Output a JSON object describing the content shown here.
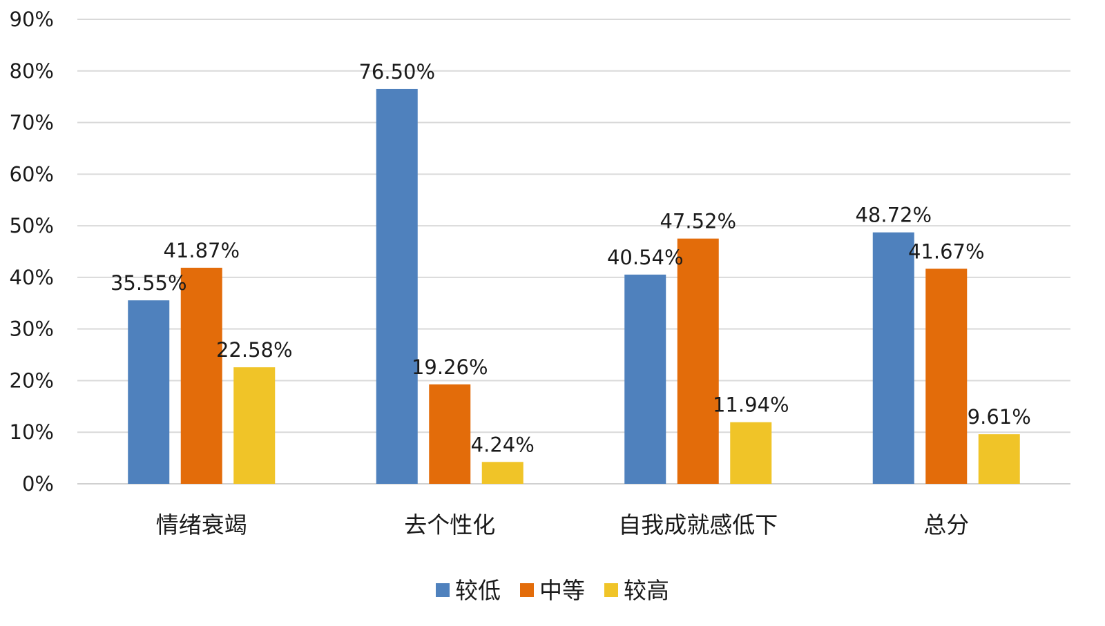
{
  "chart_data": {
    "type": "bar",
    "title": "",
    "xlabel": "",
    "ylabel": "",
    "categories": [
      "情绪衰竭",
      "去个性化",
      "自我成就感低下",
      "总分"
    ],
    "series": [
      {
        "name": "较低",
        "color": "#4f81bd",
        "values": [
          35.55,
          76.5,
          40.54,
          48.72
        ],
        "labels": [
          "35.55%",
          "76.50%",
          "40.54%",
          "48.72%"
        ]
      },
      {
        "name": "中等",
        "color": "#e36c0a",
        "values": [
          41.87,
          19.26,
          47.52,
          41.67
        ],
        "labels": [
          "41.87%",
          "19.26%",
          "47.52%",
          "41.67%"
        ]
      },
      {
        "name": "较高",
        "color": "#f0c428",
        "values": [
          22.58,
          4.24,
          11.94,
          9.61
        ],
        "labels": [
          "22.58%",
          "4.24%",
          "11.94%",
          "9.61%"
        ]
      }
    ],
    "ylim": [
      0,
      90
    ],
    "yticks": [
      0,
      10,
      20,
      30,
      40,
      50,
      60,
      70,
      80,
      90
    ],
    "ytick_labels": [
      "0%",
      "10%",
      "20%",
      "30%",
      "40%",
      "50%",
      "60%",
      "70%",
      "80%",
      "90%"
    ],
    "grid": true,
    "legend": "bottom-center"
  }
}
